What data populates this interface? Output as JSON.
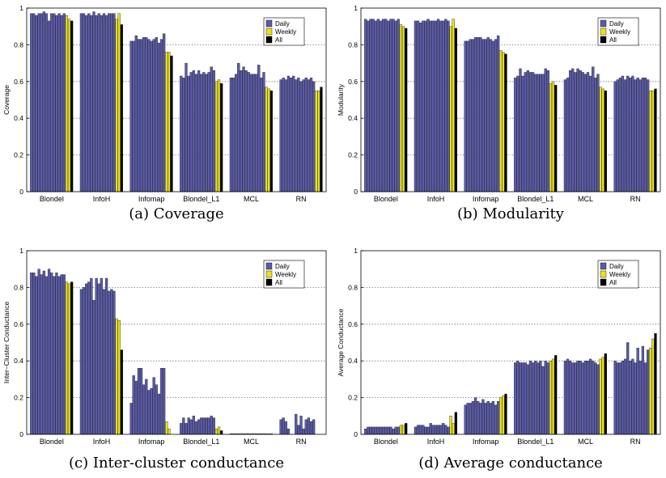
{
  "legend": {
    "daily": "Daily",
    "weekly": "Weekly",
    "all": "All"
  },
  "colors": {
    "daily": "#5b5ba8",
    "weekly": "#e8e020",
    "all": "#000000",
    "grid": "#555555",
    "axis": "#000000"
  },
  "chart_data": [
    {
      "type": "bar",
      "caption": "(a) Coverage",
      "ylabel": "Coverage",
      "ylim": [
        0,
        1
      ],
      "yticks": [
        "0",
        "0.2",
        "0.4",
        "0.6",
        "0.8",
        "1"
      ],
      "categories": [
        "Blondel",
        "InfoH",
        "Infomap",
        "Blondel_L1",
        "MCL",
        "RN"
      ],
      "grid": true,
      "legend_position": "top-right",
      "groups": [
        {
          "daily": [
            0.97,
            0.97,
            0.96,
            0.97,
            0.97,
            0.98,
            0.97,
            0.93,
            0.97,
            0.97,
            0.96,
            0.97,
            0.96,
            0.97
          ],
          "weekly": [
            0.96,
            0.94
          ],
          "all": [
            0.93
          ]
        },
        {
          "daily": [
            0.97,
            0.97,
            0.96,
            0.97,
            0.96,
            0.98,
            0.96,
            0.97,
            0.96,
            0.97,
            0.96,
            0.97,
            0.97,
            0.97
          ],
          "weekly": [
            0.94,
            0.97
          ],
          "all": [
            0.91
          ]
        },
        {
          "daily": [
            0.82,
            0.82,
            0.85,
            0.83,
            0.83,
            0.84,
            0.84,
            0.83,
            0.82,
            0.83,
            0.84,
            0.81,
            0.83,
            0.86
          ],
          "weekly": [
            0.76,
            0.76
          ],
          "all": [
            0.74
          ]
        },
        {
          "daily": [
            0.63,
            0.62,
            0.7,
            0.63,
            0.65,
            0.66,
            0.64,
            0.66,
            0.64,
            0.65,
            0.64,
            0.65,
            0.68,
            0.66
          ],
          "weekly": [
            0.6,
            0.61
          ],
          "all": [
            0.59
          ]
        },
        {
          "daily": [
            0.62,
            0.62,
            0.64,
            0.7,
            0.66,
            0.68,
            0.66,
            0.65,
            0.64,
            0.64,
            0.64,
            0.69,
            0.62,
            0.65
          ],
          "weekly": [
            0.57,
            0.56
          ],
          "all": [
            0.55
          ]
        },
        {
          "daily": [
            0.61,
            0.62,
            0.61,
            0.63,
            0.62,
            0.63,
            0.61,
            0.62,
            0.6,
            0.61,
            0.62,
            0.61,
            0.62,
            0.6
          ],
          "weekly": [
            0.55,
            0.55
          ],
          "all": [
            0.57
          ]
        }
      ]
    },
    {
      "type": "bar",
      "caption": "(b) Modularity",
      "ylabel": "Modularity",
      "ylim": [
        0,
        1
      ],
      "yticks": [
        "0",
        "0.2",
        "0.4",
        "0.6",
        "0.8",
        "1"
      ],
      "categories": [
        "Blondel",
        "InfoH",
        "Infomap",
        "Blondel_L1",
        "MCL",
        "RN"
      ],
      "grid": true,
      "legend_position": "top-right",
      "groups": [
        {
          "daily": [
            0.94,
            0.93,
            0.94,
            0.94,
            0.93,
            0.94,
            0.93,
            0.94,
            0.94,
            0.93,
            0.94,
            0.94,
            0.93,
            0.94
          ],
          "weekly": [
            0.91,
            0.9
          ],
          "all": [
            0.89
          ]
        },
        {
          "daily": [
            0.93,
            0.93,
            0.92,
            0.93,
            0.93,
            0.94,
            0.93,
            0.93,
            0.93,
            0.94,
            0.93,
            0.93,
            0.94,
            0.93
          ],
          "weekly": [
            0.9,
            0.94
          ],
          "all": [
            0.89
          ]
        },
        {
          "daily": [
            0.82,
            0.82,
            0.83,
            0.83,
            0.84,
            0.84,
            0.84,
            0.83,
            0.83,
            0.84,
            0.83,
            0.82,
            0.83,
            0.85
          ],
          "weekly": [
            0.77,
            0.76
          ],
          "all": [
            0.75
          ]
        },
        {
          "daily": [
            0.62,
            0.63,
            0.67,
            0.63,
            0.65,
            0.66,
            0.65,
            0.65,
            0.64,
            0.64,
            0.64,
            0.64,
            0.67,
            0.66
          ],
          "weekly": [
            0.59,
            0.6
          ],
          "all": [
            0.58
          ]
        },
        {
          "daily": [
            0.61,
            0.62,
            0.66,
            0.67,
            0.65,
            0.67,
            0.66,
            0.65,
            0.64,
            0.65,
            0.63,
            0.68,
            0.62,
            0.64
          ],
          "weekly": [
            0.57,
            0.56
          ],
          "all": [
            0.55
          ]
        },
        {
          "daily": [
            0.6,
            0.61,
            0.62,
            0.63,
            0.61,
            0.63,
            0.62,
            0.63,
            0.61,
            0.62,
            0.61,
            0.62,
            0.62,
            0.61
          ],
          "weekly": [
            0.55,
            0.55
          ],
          "all": [
            0.56
          ]
        }
      ]
    },
    {
      "type": "bar",
      "caption": "(c) Inter-cluster conductance",
      "ylabel": "Inter−Cluster Conductance",
      "ylim": [
        0,
        1
      ],
      "yticks": [
        "0",
        "0.2",
        "0.4",
        "0.6",
        "0.8",
        "1"
      ],
      "categories": [
        "Blondel",
        "InfoH",
        "Infomap",
        "Blondel_L1",
        "MCL",
        "RN"
      ],
      "grid": true,
      "legend_position": "top-right",
      "groups": [
        {
          "daily": [
            0.88,
            0.88,
            0.86,
            0.9,
            0.87,
            0.89,
            0.86,
            0.9,
            0.88,
            0.86,
            0.88,
            0.86,
            0.87,
            0.87
          ],
          "weekly": [
            0.83,
            0.82
          ],
          "all": [
            0.83
          ]
        },
        {
          "daily": [
            0.79,
            0.8,
            0.82,
            0.83,
            0.85,
            0.73,
            0.85,
            0.82,
            0.85,
            0.79,
            0.85,
            0.78,
            0.79,
            0.78
          ],
          "weekly": [
            0.63,
            0.62
          ],
          "all": [
            0.46
          ]
        },
        {
          "daily": [
            0.17,
            0.32,
            0.29,
            0.36,
            0.36,
            0.27,
            0.3,
            0.24,
            0.25,
            0.31,
            0.27,
            0.22,
            0.36,
            0.36
          ],
          "weekly": [
            0.07,
            0.03
          ],
          "all": [
            0.0
          ]
        },
        {
          "daily": [
            0.06,
            0.09,
            0.06,
            0.09,
            0.08,
            0.1,
            0.07,
            0.08,
            0.09,
            0.09,
            0.09,
            0.09,
            0.1,
            0.09
          ],
          "weekly": [
            0.03,
            0.04
          ],
          "all": [
            0.02
          ]
        },
        {
          "daily": [
            0.003,
            0.003,
            0.003,
            0.003,
            0.003,
            0.003,
            0.003,
            0.003,
            0.003,
            0.003,
            0.003,
            0.003,
            0.003,
            0.003
          ],
          "weekly": [
            0.003,
            0.003
          ],
          "all": [
            0.003
          ]
        },
        {
          "daily": [
            0.08,
            0.09,
            0.07,
            0.03,
            0.0,
            0.0,
            0.11,
            0.05,
            0.1,
            0.03,
            0.08,
            0.09,
            0.07,
            0.08
          ],
          "weekly": [
            0.0,
            0.0
          ],
          "all": [
            0.0
          ]
        }
      ]
    },
    {
      "type": "bar",
      "caption": "(d) Average conductance",
      "ylabel": "Average Conductance",
      "ylim": [
        0,
        1
      ],
      "yticks": [
        "0",
        "0.2",
        "0.4",
        "0.6",
        "0.8",
        "1"
      ],
      "categories": [
        "Blondel",
        "InfoH",
        "Infomap",
        "Blondel_L1",
        "MCL",
        "RN"
      ],
      "grid": true,
      "legend_position": "top-right",
      "groups": [
        {
          "daily": [
            0.03,
            0.04,
            0.04,
            0.04,
            0.04,
            0.04,
            0.04,
            0.04,
            0.04,
            0.04,
            0.04,
            0.03,
            0.04,
            0.04
          ],
          "weekly": [
            0.05,
            0.05
          ],
          "all": [
            0.06
          ]
        },
        {
          "daily": [
            0.04,
            0.05,
            0.05,
            0.05,
            0.04,
            0.04,
            0.06,
            0.05,
            0.05,
            0.05,
            0.05,
            0.06,
            0.05,
            0.04
          ],
          "weekly": [
            0.1,
            0.06
          ],
          "all": [
            0.12
          ]
        },
        {
          "daily": [
            0.16,
            0.17,
            0.17,
            0.18,
            0.2,
            0.18,
            0.17,
            0.19,
            0.17,
            0.18,
            0.17,
            0.18,
            0.16,
            0.18
          ],
          "weekly": [
            0.2,
            0.21
          ],
          "all": [
            0.22
          ]
        },
        {
          "daily": [
            0.39,
            0.4,
            0.39,
            0.39,
            0.39,
            0.38,
            0.4,
            0.39,
            0.4,
            0.39,
            0.4,
            0.37,
            0.4,
            0.39
          ],
          "weekly": [
            0.4,
            0.41
          ],
          "all": [
            0.43
          ]
        },
        {
          "daily": [
            0.4,
            0.41,
            0.4,
            0.39,
            0.39,
            0.4,
            0.4,
            0.39,
            0.4,
            0.4,
            0.41,
            0.4,
            0.39,
            0.38
          ],
          "weekly": [
            0.41,
            0.42
          ],
          "all": [
            0.44
          ]
        },
        {
          "daily": [
            0.4,
            0.39,
            0.39,
            0.4,
            0.41,
            0.5,
            0.4,
            0.41,
            0.39,
            0.47,
            0.4,
            0.48,
            0.39,
            0.46
          ],
          "weekly": [
            0.47,
            0.52
          ],
          "all": [
            0.55
          ]
        }
      ]
    }
  ]
}
